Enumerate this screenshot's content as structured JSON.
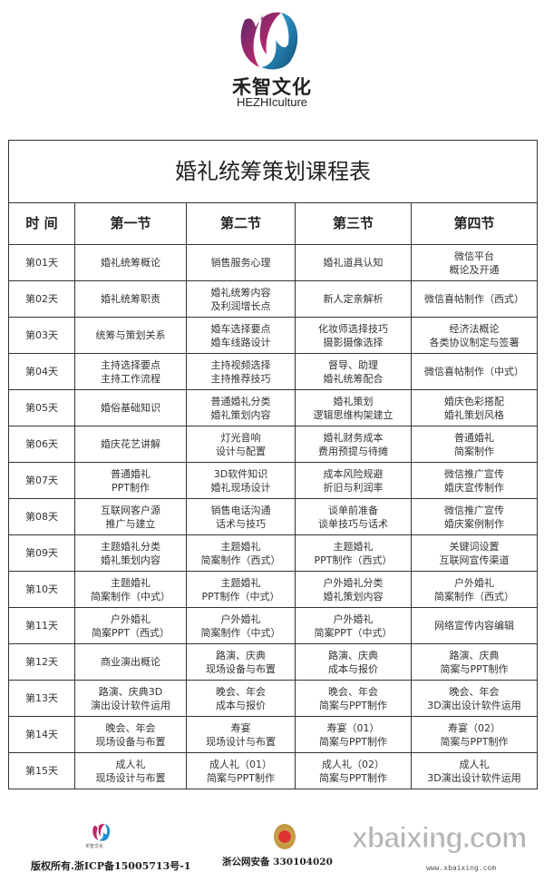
{
  "brand": {
    "name_cn": "禾智文化",
    "name_en": "HEZHIculture",
    "colors": {
      "pink": "#e8266f",
      "blue": "#1c8fd0",
      "purple": "#5a2a6a"
    }
  },
  "table": {
    "title": "婚礼统筹策划课程表",
    "headers": [
      "时 间",
      "第一节",
      "第二节",
      "第三节",
      "第四节"
    ],
    "rows": [
      [
        "第01天",
        "婚礼统筹概论",
        "销售服务心理",
        "婚礼道具认知",
        "微信平台\n概论及开通"
      ],
      [
        "第02天",
        "婚礼统筹职责",
        "婚礼统筹内容\n及利润增长点",
        "新人定亲解析",
        "微信喜帖制作（西式）"
      ],
      [
        "第03天",
        "统筹与策划关系",
        "婚车选择要点\n婚车线路设计",
        "化妆师选择技巧\n摄影摄像选择",
        "经济法概论\n各类协议制定与签署"
      ],
      [
        "第04天",
        "主持选择要点\n主持工作流程",
        "主持视频选择\n主持推荐技巧",
        "督导、助理\n婚礼统筹配合",
        "微信喜帖制作（中式）"
      ],
      [
        "第05天",
        "婚俗基础知识",
        "普通婚礼分类\n婚礼策划内容",
        "婚礼策划\n逻辑思维构架建立",
        "婚庆色彩搭配\n婚礼策划风格"
      ],
      [
        "第06天",
        "婚庆花艺讲解",
        "灯光音响\n设计与配置",
        "婚礼财务成本\n费用预提与待摊",
        "普通婚礼\n简案制作"
      ],
      [
        "第07天",
        "普通婚礼\nPPT制作",
        "3D软件知识\n婚礼现场设计",
        "成本风险规避\n折旧与利润率",
        "微信推广宣传\n婚庆宣传制作"
      ],
      [
        "第08天",
        "互联网客户源\n推广与建立",
        "销售电话沟通\n话术与技巧",
        "谈单前准备\n谈单技巧与话术",
        "微信推广宣传\n婚庆案例制作"
      ],
      [
        "第09天",
        "主题婚礼分类\n婚礼策划内容",
        "主题婚礼\n简案制作（西式）",
        "主题婚礼\nPPT制作（西式）",
        "关键词设置\n互联网宣传渠道"
      ],
      [
        "第10天",
        "主题婚礼\n简案制作（中式）",
        "主题婚礼\nPPT制作（中式）",
        "户外婚礼分类\n婚礼策划内容",
        "户外婚礼\n简案制作（西式）"
      ],
      [
        "第11天",
        "户外婚礼\n简案PPT（西式）",
        "户外婚礼\n简案制作（中式）",
        "户外婚礼\n简案PPT（中式）",
        "网络宣传内容编辑"
      ],
      [
        "第12天",
        "商业演出概论",
        "路演、庆典\n现场设备与布置",
        "路演、庆典\n成本与报价",
        "路演、庆典\n简案与PPT制作"
      ],
      [
        "第13天",
        "路演、庆典3D\n演出设计软件运用",
        "晚会、年会\n成本与报价",
        "晚会、年会\n简案与PPT制作",
        "晚会、年会\n3D演出设计软件运用"
      ],
      [
        "第14天",
        "晚会、年会\n现场设备与布置",
        "寿宴\n现场设计与布置",
        "寿宴（01）\n简案与PPT制作",
        "寿宴（02）\n简案与PPT制作"
      ],
      [
        "第15天",
        "成人礼\n现场设计与布置",
        "成人礼（01）\n简案与PPT制作",
        "成人礼（02）\n简案与PPT制作",
        "成人礼\n3D演出设计软件运用"
      ]
    ]
  },
  "footer": {
    "brand_cn": "禾智文化",
    "copyright": "版权所有.浙ICP备15005713号-1",
    "police": "浙公网安备 330104020",
    "watermark": "xbaixing.com",
    "watermark_url": "www.xbaixing.com"
  }
}
